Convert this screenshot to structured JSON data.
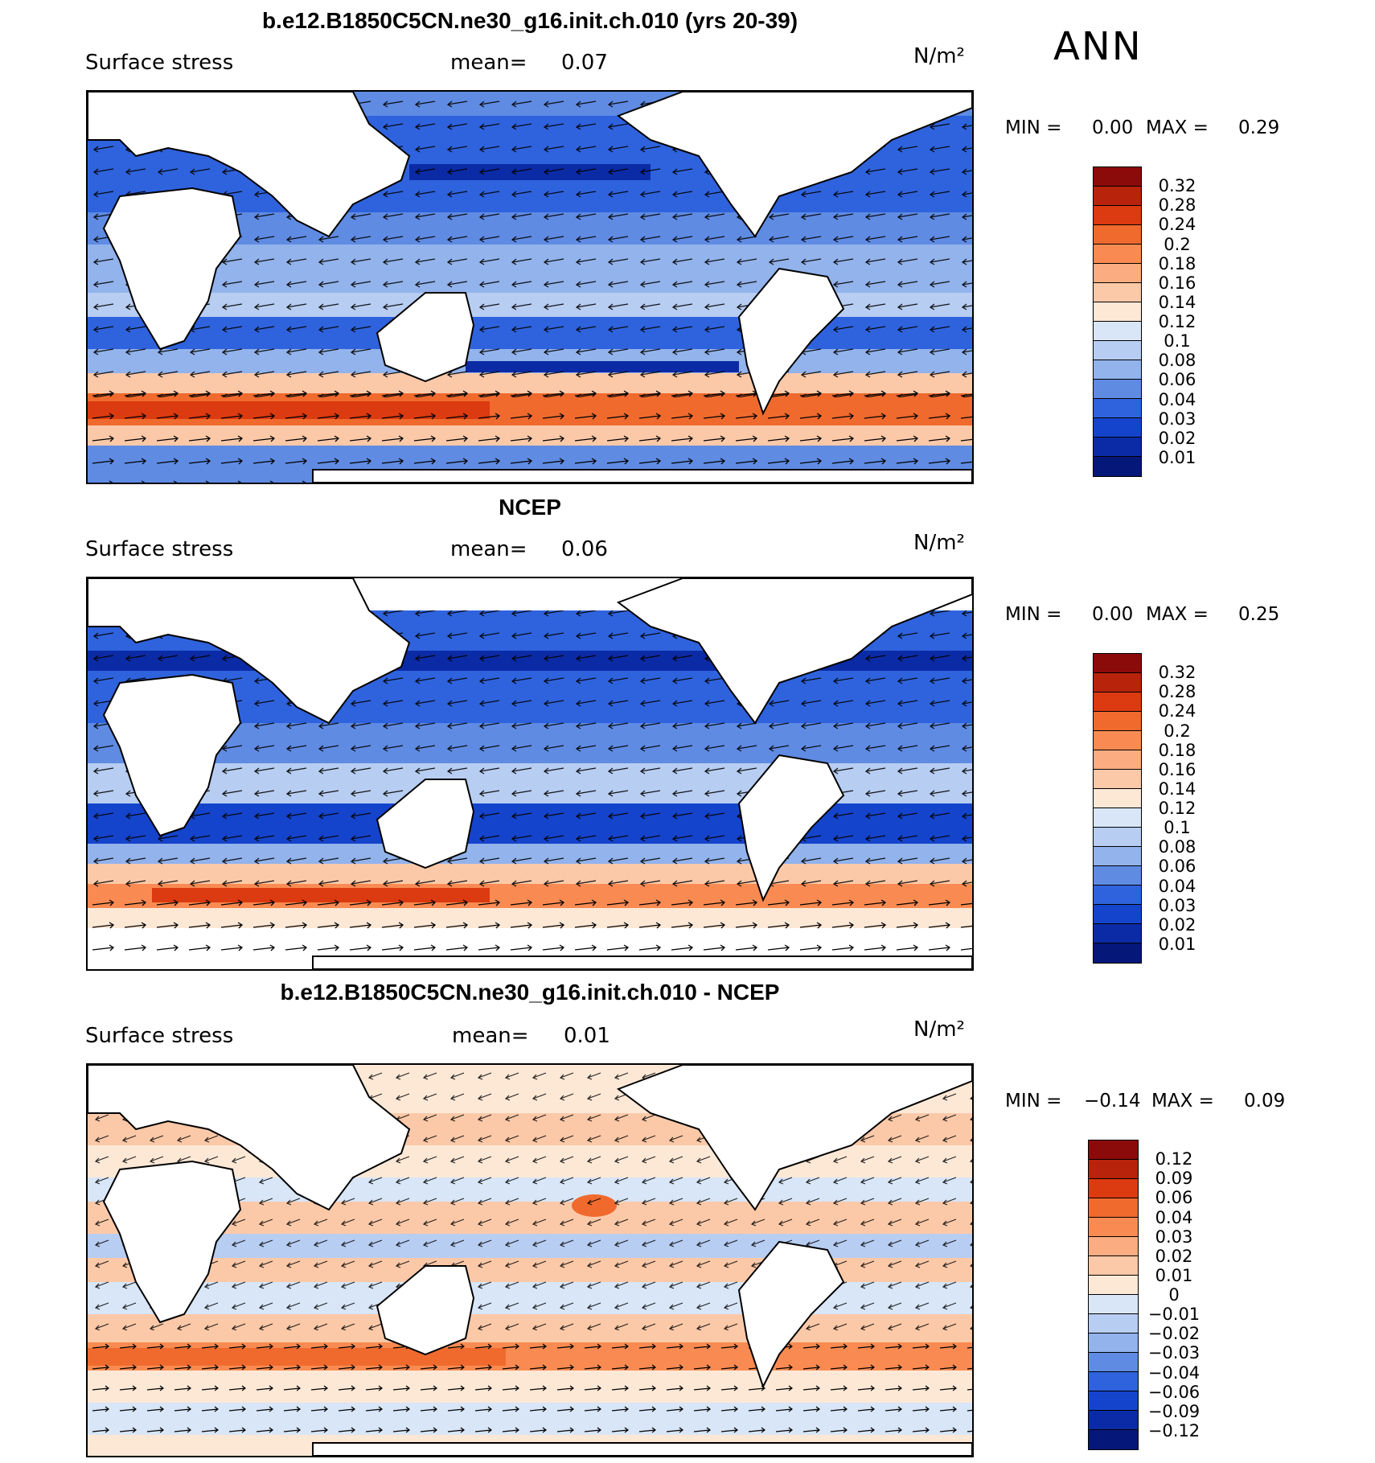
{
  "season": "ANN",
  "panels": [
    {
      "title": "b.e12.B1850C5CN.ne30_g16.init.ch.010 (yrs 20-39)",
      "left_label": "Surface stress",
      "mean_label": "mean=",
      "mean_value": "0.07",
      "units": "N/m²",
      "min_label": "MIN =",
      "min_value": "0.00",
      "max_label": "MAX =",
      "max_value": "0.29",
      "colorbar": {
        "levels": [
          "0.32",
          "0.28",
          "0.24",
          "0.2",
          "0.18",
          "0.16",
          "0.14",
          "0.12",
          "0.1",
          "0.08",
          "0.06",
          "0.04",
          "0.03",
          "0.02",
          "0.01"
        ],
        "colors": [
          "#8b0a0a",
          "#b8230c",
          "#dc3a10",
          "#f06a2e",
          "#f98b52",
          "#fbac80",
          "#fcc9a8",
          "#fde8d6",
          "#d8e6f8",
          "#b7cdf2",
          "#92b3ec",
          "#5f8be3",
          "#2f63dd",
          "#1544cc",
          "#0b2ba6",
          "#06177a"
        ]
      }
    },
    {
      "title": "NCEP",
      "left_label": "Surface stress",
      "mean_label": "mean=",
      "mean_value": "0.06",
      "units": "N/m²",
      "min_label": "MIN =",
      "min_value": "0.00",
      "max_label": "MAX =",
      "max_value": "0.25",
      "colorbar": {
        "levels": [
          "0.32",
          "0.28",
          "0.24",
          "0.2",
          "0.18",
          "0.16",
          "0.14",
          "0.12",
          "0.1",
          "0.08",
          "0.06",
          "0.04",
          "0.03",
          "0.02",
          "0.01"
        ],
        "colors": [
          "#8b0a0a",
          "#b8230c",
          "#dc3a10",
          "#f06a2e",
          "#f98b52",
          "#fbac80",
          "#fcc9a8",
          "#fde8d6",
          "#d8e6f8",
          "#b7cdf2",
          "#92b3ec",
          "#5f8be3",
          "#2f63dd",
          "#1544cc",
          "#0b2ba6",
          "#06177a"
        ]
      }
    },
    {
      "title": "b.e12.B1850C5CN.ne30_g16.init.ch.010 - NCEP",
      "left_label": "Surface stress",
      "mean_label": "mean=",
      "mean_value": "0.01",
      "units": "N/m²",
      "min_label": "MIN =",
      "min_value": "−0.14",
      "max_label": "MAX =",
      "max_value": "0.09",
      "colorbar": {
        "levels": [
          "0.12",
          "0.09",
          "0.06",
          "0.04",
          "0.03",
          "0.02",
          "0.01",
          "0",
          "−0.01",
          "−0.02",
          "−0.03",
          "−0.04",
          "−0.06",
          "−0.09",
          "−0.12"
        ],
        "colors": [
          "#8b0a0a",
          "#b8230c",
          "#dc3a10",
          "#f06a2e",
          "#f98b52",
          "#fbac80",
          "#fcc9a8",
          "#fde8d6",
          "#d8e6f8",
          "#b7cdf2",
          "#92b3ec",
          "#5f8be3",
          "#2f63dd",
          "#1544cc",
          "#0b2ba6",
          "#06177a"
        ]
      }
    }
  ]
}
